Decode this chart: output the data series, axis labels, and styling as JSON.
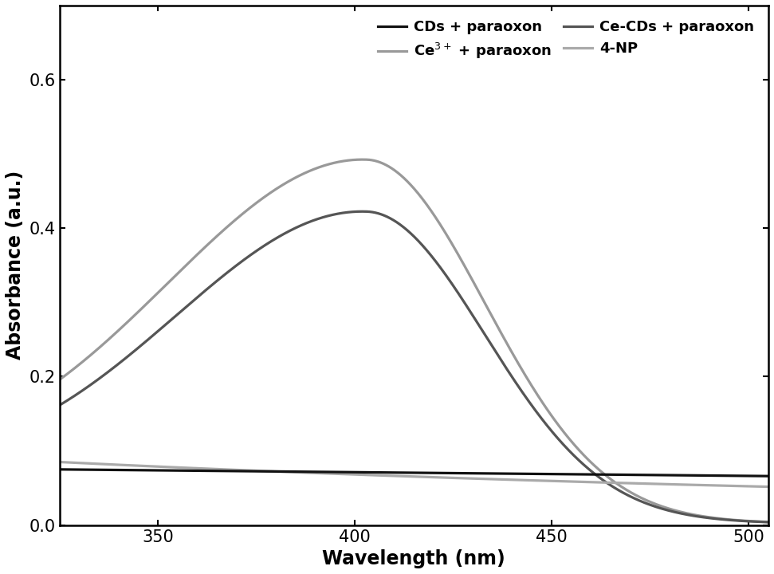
{
  "title": "",
  "xlabel": "Wavelength (nm)",
  "ylabel": "Absorbance (a.u.)",
  "xlim": [
    325,
    505
  ],
  "ylim": [
    0,
    0.7
  ],
  "yticks": [
    0,
    0.2,
    0.4,
    0.6
  ],
  "xticks": [
    350,
    400,
    450,
    500
  ],
  "background_color": "#ffffff",
  "cds_color": "#111111",
  "ce_cds_color": "#555555",
  "ce3_color": "#999999",
  "np4_color": "#aaaaaa",
  "linewidth": 2.3,
  "legend_fontsize": 13,
  "axis_fontsize": 17,
  "tick_fontsize": 15
}
